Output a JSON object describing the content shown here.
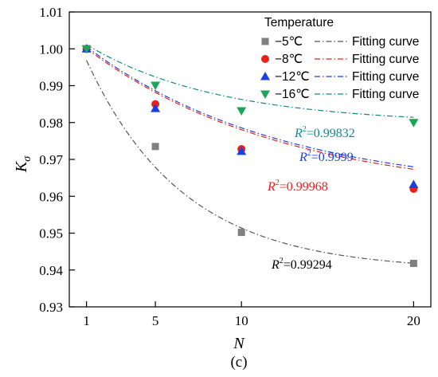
{
  "chart_data": {
    "type": "scatter",
    "panel_label": "(c)",
    "xlabel": "N",
    "ylabel_main": "K",
    "ylabel_sub": "σ",
    "xlim": [
      0,
      21
    ],
    "ylim": [
      0.93,
      1.01
    ],
    "x_ticks": [
      1,
      5,
      10,
      20
    ],
    "x_tick_labels": [
      "1",
      "5",
      "10",
      "20"
    ],
    "y_ticks": [
      0.93,
      0.94,
      0.95,
      0.96,
      0.97,
      0.98,
      0.99,
      1.0,
      1.01
    ],
    "y_tick_labels": [
      "0.93",
      "0.94",
      "0.95",
      "0.96",
      "0.97",
      "0.98",
      "0.99",
      "1.00",
      "1.01"
    ],
    "grid": false,
    "legend": {
      "title": "Temperature",
      "position": "top-right",
      "fit_label": "Fitting curve"
    },
    "series": [
      {
        "name": "−5℃",
        "marker": "square",
        "color": "#808080",
        "line_color": "#555555",
        "x": [
          1,
          5,
          10,
          20
        ],
        "y": [
          1.0,
          0.9735,
          0.9502,
          0.9418
        ],
        "fit": {
          "a": 0.9399,
          "b": 0.0681,
          "k": 0.178
        },
        "r2_label": "=0.99294",
        "r2_color": "#000000"
      },
      {
        "name": "−8℃",
        "marker": "circle",
        "color": "#e8211d",
        "line_color": "#e8211d",
        "x": [
          1,
          5,
          10,
          20
        ],
        "y": [
          1.0,
          0.985,
          0.9728,
          0.962
        ],
        "fit": {
          "a": 0.9596,
          "b": 0.0442,
          "k": 0.0873
        },
        "r2_label": "=0.99968",
        "r2_color": "#e8211d"
      },
      {
        "name": "−12℃",
        "marker": "triangle-up",
        "color": "#1b3fe0",
        "line_color": "#1b3fe0",
        "x": [
          1,
          5,
          10,
          20
        ],
        "y": [
          1.0,
          0.9838,
          0.9722,
          0.9632
        ],
        "fit": {
          "a": 0.9606,
          "b": 0.0437,
          "k": 0.0889
        },
        "r2_label": "=0.9999",
        "r2_color": "#1b3fe0"
      },
      {
        "name": "−16℃",
        "marker": "triangle-down",
        "color": "#19a656",
        "line_color": "#128a8a",
        "x": [
          1,
          5,
          10,
          20
        ],
        "y": [
          1.0,
          0.9901,
          0.9832,
          0.98
        ],
        "fit": {
          "a": 0.9796,
          "b": 0.0245,
          "k": 0.13
        },
        "r2_label": "=0.99832",
        "r2_color": "#128a8a"
      }
    ]
  }
}
